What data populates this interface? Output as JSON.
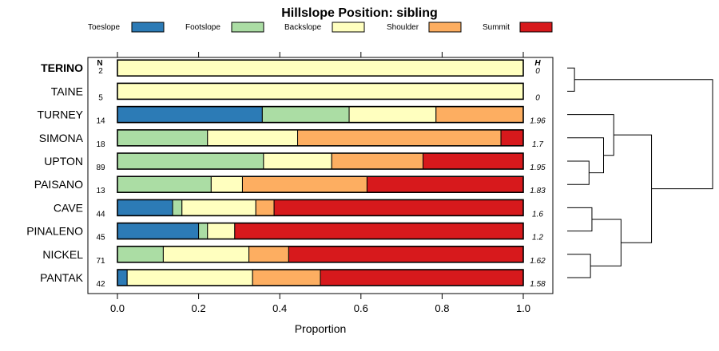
{
  "chart_data": {
    "type": "bar",
    "stacked": true,
    "orientation": "horizontal",
    "title": "Hillslope Position: sibling",
    "xlabel": "Proportion",
    "xlim": [
      0,
      1
    ],
    "xticks": [
      "0.0",
      "0.2",
      "0.4",
      "0.6",
      "0.8",
      "1.0"
    ],
    "n_header": "N",
    "h_header": "H",
    "legend": [
      {
        "name": "Toeslope",
        "color": "#2C7BB6"
      },
      {
        "name": "Footslope",
        "color": "#ABDDA4"
      },
      {
        "name": "Backslope",
        "color": "#FFFFBF"
      },
      {
        "name": "Shoulder",
        "color": "#FDAE61"
      },
      {
        "name": "Summit",
        "color": "#D7191C"
      }
    ],
    "rows": [
      {
        "label": "TERINO",
        "bold": true,
        "n": "2",
        "h": "0",
        "values": [
          0,
          0,
          1.0,
          0,
          0
        ]
      },
      {
        "label": "TAINE",
        "bold": false,
        "n": "5",
        "h": "0",
        "values": [
          0,
          0,
          1.0,
          0,
          0
        ]
      },
      {
        "label": "TURNEY",
        "bold": false,
        "n": "14",
        "h": "1.96",
        "values": [
          0.357,
          0.214,
          0.214,
          0.215,
          0
        ]
      },
      {
        "label": "SIMONA",
        "bold": false,
        "n": "18",
        "h": "1.7",
        "values": [
          0,
          0.222,
          0.222,
          0.501,
          0.055
        ]
      },
      {
        "label": "UPTON",
        "bold": false,
        "n": "89",
        "h": "1.95",
        "values": [
          0,
          0.36,
          0.168,
          0.225,
          0.247
        ]
      },
      {
        "label": "PAISANO",
        "bold": false,
        "n": "13",
        "h": "1.83",
        "values": [
          0,
          0.231,
          0.077,
          0.307,
          0.385
        ]
      },
      {
        "label": "CAVE",
        "bold": false,
        "n": "44",
        "h": "1.6",
        "values": [
          0.136,
          0.023,
          0.182,
          0.045,
          0.614
        ]
      },
      {
        "label": "PINALENO",
        "bold": false,
        "n": "45",
        "h": "1.2",
        "values": [
          0.2,
          0.022,
          0.067,
          0,
          0.711
        ]
      },
      {
        "label": "NICKEL",
        "bold": false,
        "n": "71",
        "h": "1.62",
        "values": [
          0,
          0.113,
          0.211,
          0.098,
          0.578
        ]
      },
      {
        "label": "PANTAK",
        "bold": false,
        "n": "42",
        "h": "1.58",
        "values": [
          0.024,
          0,
          0.309,
          0.167,
          0.5
        ]
      }
    ],
    "dendrogram": {
      "leaf_order": [
        "TERINO",
        "TAINE",
        "TURNEY",
        "SIMONA",
        "UPTON",
        "PAISANO",
        "CAVE",
        "PINALENO",
        "NICKEL",
        "PANTAK"
      ],
      "merges": [
        [
          0,
          1,
          0.05
        ],
        [
          4,
          5,
          0.15
        ],
        [
          3,
          11,
          0.25
        ],
        [
          2,
          12,
          0.32
        ],
        [
          6,
          7,
          0.17
        ],
        [
          8,
          9,
          0.16
        ],
        [
          14,
          15,
          0.37
        ],
        [
          13,
          16,
          0.58
        ],
        [
          10,
          17,
          1.0
        ]
      ]
    }
  }
}
